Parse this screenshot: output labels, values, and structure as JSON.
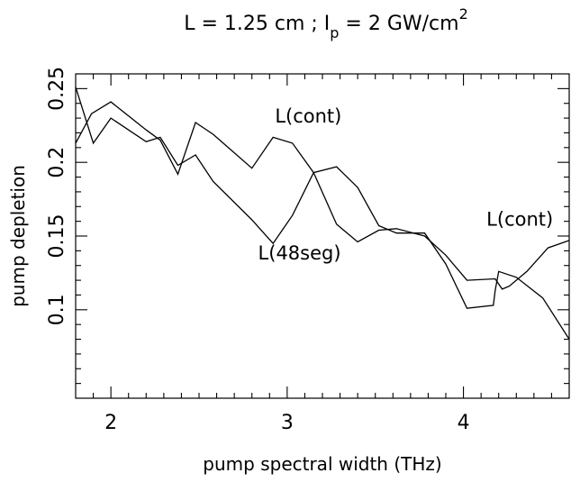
{
  "chart_data": {
    "type": "line",
    "title": "L = 1.25 cm ; I_p = 2 GW/cm^2",
    "title_parts": {
      "lead": "L = 1.25 cm ;  I",
      "sub": "p",
      "mid": " = 2 GW/cm",
      "sup": "2"
    },
    "xlabel": "pump spectral width (THz)",
    "ylabel": "pump depletion",
    "xlim": [
      1.8,
      4.6
    ],
    "ylim": [
      0.04,
      0.26
    ],
    "xticks_major": [
      2,
      3,
      4
    ],
    "xtick_labels": [
      "2",
      "3",
      "4"
    ],
    "xticks_minor": [
      1.9,
      2.1,
      2.2,
      2.3,
      2.4,
      2.5,
      2.6,
      2.7,
      2.8,
      2.9,
      3.1,
      3.2,
      3.3,
      3.4,
      3.5,
      3.6,
      3.7,
      3.8,
      3.9,
      4.1,
      4.2,
      4.3,
      4.4,
      4.5
    ],
    "yticks_major": [
      0.1,
      0.15,
      0.2,
      0.25
    ],
    "ytick_labels": [
      "0.1",
      "0.15",
      "0.2",
      "0.25"
    ],
    "yticks_minor": [
      0.05,
      0.06,
      0.07,
      0.08,
      0.09,
      0.11,
      0.12,
      0.13,
      0.14,
      0.16,
      0.17,
      0.18,
      0.19,
      0.21,
      0.22,
      0.23,
      0.24
    ],
    "grid": false,
    "legend": "none",
    "series": [
      {
        "name": "L(cont)",
        "x": [
          1.8,
          1.89,
          2.0,
          2.2,
          2.28,
          2.38,
          2.48,
          2.58,
          2.8,
          2.92,
          3.03,
          3.15,
          3.28,
          3.4,
          3.52,
          3.62,
          3.78,
          3.9,
          4.02,
          4.18,
          4.22,
          4.26,
          4.36,
          4.48,
          4.6
        ],
        "y": [
          0.213,
          0.233,
          0.241,
          0.222,
          0.215,
          0.192,
          0.227,
          0.219,
          0.196,
          0.217,
          0.213,
          0.193,
          0.158,
          0.146,
          0.154,
          0.155,
          0.15,
          0.137,
          0.12,
          0.121,
          0.114,
          0.116,
          0.126,
          0.142,
          0.147
        ]
      },
      {
        "name": "L(48seg)",
        "x": [
          1.8,
          1.9,
          2.0,
          2.2,
          2.28,
          2.38,
          2.48,
          2.58,
          2.8,
          2.92,
          3.03,
          3.15,
          3.28,
          3.4,
          3.52,
          3.62,
          3.78,
          3.9,
          4.02,
          4.17,
          4.18,
          4.2,
          4.3,
          4.45,
          4.6
        ],
        "y": [
          0.251,
          0.213,
          0.23,
          0.214,
          0.217,
          0.198,
          0.205,
          0.187,
          0.161,
          0.145,
          0.164,
          0.193,
          0.197,
          0.183,
          0.157,
          0.152,
          0.152,
          0.131,
          0.101,
          0.103,
          0.113,
          0.126,
          0.122,
          0.108,
          0.08
        ]
      }
    ],
    "annotations": [
      {
        "text": "L(cont)",
        "x": 3.12,
        "y": 0.227
      },
      {
        "text": "L(48seg)",
        "x": 3.07,
        "y": 0.134
      },
      {
        "text": "L(cont)",
        "x": 4.32,
        "y": 0.157
      }
    ]
  }
}
